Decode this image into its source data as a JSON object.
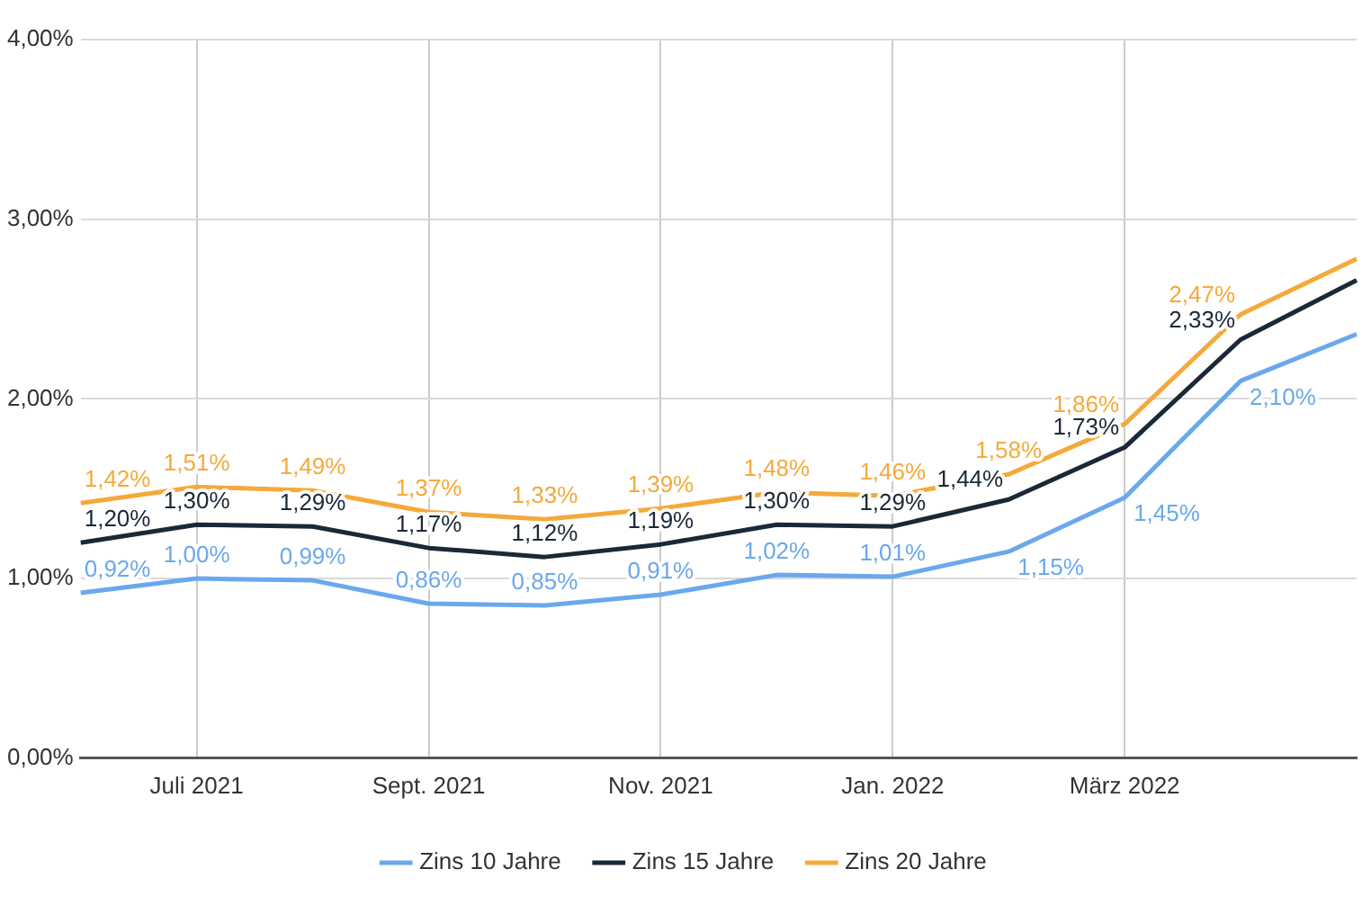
{
  "chart_data": {
    "type": "line",
    "categories": [
      null,
      "Juli 2021",
      null,
      "Sept. 2021",
      null,
      "Nov. 2021",
      null,
      "Jan. 2022",
      null,
      "März 2022",
      null,
      null
    ],
    "ylim": [
      0,
      4
    ],
    "yticks": [
      {
        "value": 0,
        "label": "0,00%"
      },
      {
        "value": 1,
        "label": "1,00%"
      },
      {
        "value": 2,
        "label": "2,00%"
      },
      {
        "value": 3,
        "label": "3,00%"
      },
      {
        "value": 4,
        "label": "4,00%"
      }
    ],
    "grid": true,
    "legend": "bottom",
    "marker": "none",
    "line_style": "solid",
    "series": [
      {
        "name": "Zins 10 Jahre",
        "color": "#6aa8ee",
        "values": [
          0.92,
          1.0,
          0.99,
          0.86,
          0.85,
          0.91,
          1.02,
          1.01,
          1.15,
          1.45,
          2.1,
          2.36
        ],
        "value_labels": [
          "0,92%",
          "1,00%",
          "0,99%",
          "0,86%",
          "0,85%",
          "0,91%",
          "1,02%",
          "1,01%",
          "1,15%",
          "1,45%",
          "2,10%",
          null
        ]
      },
      {
        "name": "Zins 15 Jahre",
        "color": "#1b2838",
        "values": [
          1.2,
          1.3,
          1.29,
          1.17,
          1.12,
          1.19,
          1.3,
          1.29,
          1.44,
          1.73,
          2.33,
          2.66
        ],
        "value_labels": [
          "1,20%",
          "1,30%",
          "1,29%",
          "1,17%",
          "1,12%",
          "1,19%",
          "1,30%",
          "1,29%",
          "1,44%",
          "1,73%",
          "2,33%",
          null
        ]
      },
      {
        "name": "Zins 20 Jahre",
        "color": "#f5a93b",
        "values": [
          1.42,
          1.51,
          1.49,
          1.37,
          1.33,
          1.39,
          1.48,
          1.46,
          1.58,
          1.86,
          2.47,
          2.78
        ],
        "value_labels": [
          "1,42%",
          "1,51%",
          "1,49%",
          "1,37%",
          "1,33%",
          "1,39%",
          "1,48%",
          "1,46%",
          "1,58%",
          "1,86%",
          "2,47%",
          null
        ]
      }
    ]
  }
}
